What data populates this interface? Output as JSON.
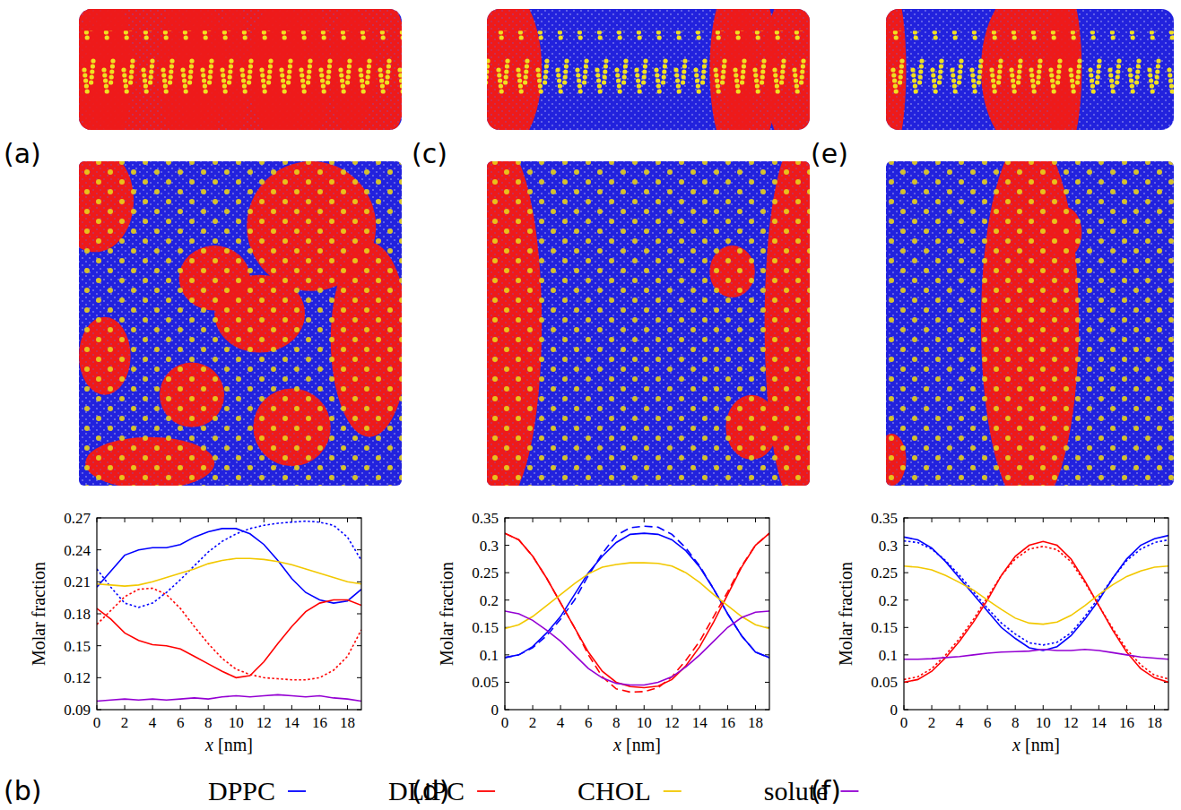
{
  "panel_labels": [
    "(a)",
    "(b)",
    "(c)",
    "(d)",
    "(e)",
    "(f)"
  ],
  "chart_data": [
    {
      "type": "line",
      "xlabel": "x [nm]",
      "ylabel": "Molar fraction",
      "legend": "bottom",
      "x": [
        0,
        1,
        2,
        3,
        4,
        5,
        6,
        7,
        8,
        9,
        10,
        11,
        12,
        13,
        14,
        15,
        16,
        17,
        18,
        19
      ],
      "xlim": [
        0,
        19
      ],
      "xticks": [
        0,
        2,
        4,
        6,
        8,
        10,
        12,
        14,
        16,
        18
      ],
      "ylim": [
        0.09,
        0.27
      ],
      "yticks": [
        0.09,
        0.12,
        0.15,
        0.18,
        0.21,
        0.24,
        0.27
      ],
      "series": [
        {
          "name": "DPPC",
          "color": "#0000ff",
          "line_style": "solid",
          "values": [
            0.205,
            0.22,
            0.235,
            0.24,
            0.242,
            0.242,
            0.245,
            0.252,
            0.257,
            0.26,
            0.26,
            0.255,
            0.245,
            0.23,
            0.213,
            0.2,
            0.193,
            0.19,
            0.192,
            0.203
          ]
        },
        {
          "name": "DPPC",
          "color": "#0000ff",
          "line_style": "dotted",
          "values": [
            0.222,
            0.205,
            0.19,
            0.186,
            0.19,
            0.2,
            0.212,
            0.225,
            0.238,
            0.248,
            0.255,
            0.26,
            0.263,
            0.265,
            0.266,
            0.267,
            0.266,
            0.263,
            0.252,
            0.23
          ]
        },
        {
          "name": "DLiPC",
          "color": "#ff0000",
          "line_style": "solid",
          "values": [
            0.185,
            0.175,
            0.162,
            0.155,
            0.151,
            0.15,
            0.147,
            0.14,
            0.133,
            0.126,
            0.12,
            0.122,
            0.135,
            0.152,
            0.168,
            0.182,
            0.19,
            0.193,
            0.193,
            0.188
          ]
        },
        {
          "name": "DLiPC",
          "color": "#ff0000",
          "line_style": "dotted",
          "values": [
            0.17,
            0.183,
            0.196,
            0.203,
            0.204,
            0.198,
            0.185,
            0.168,
            0.152,
            0.138,
            0.128,
            0.123,
            0.12,
            0.119,
            0.118,
            0.118,
            0.12,
            0.127,
            0.14,
            0.165
          ]
        },
        {
          "name": "CHOL",
          "color": "#f2c800",
          "line_style": "solid",
          "values": [
            0.208,
            0.207,
            0.206,
            0.207,
            0.21,
            0.214,
            0.218,
            0.222,
            0.227,
            0.23,
            0.232,
            0.232,
            0.231,
            0.229,
            0.226,
            0.222,
            0.218,
            0.214,
            0.21,
            0.208
          ]
        },
        {
          "name": "solute",
          "color": "#9400d3",
          "line_style": "solid",
          "values": [
            0.098,
            0.099,
            0.1,
            0.099,
            0.1,
            0.099,
            0.1,
            0.101,
            0.1,
            0.102,
            0.103,
            0.102,
            0.103,
            0.104,
            0.103,
            0.102,
            0.103,
            0.101,
            0.1,
            0.098
          ]
        }
      ]
    },
    {
      "type": "line",
      "xlabel": "x [nm]",
      "ylabel": "Molar fraction",
      "legend": "bottom",
      "x": [
        0,
        1,
        2,
        3,
        4,
        5,
        6,
        7,
        8,
        9,
        10,
        11,
        12,
        13,
        14,
        15,
        16,
        17,
        18,
        19
      ],
      "xlim": [
        0,
        19
      ],
      "xticks": [
        0,
        2,
        4,
        6,
        8,
        10,
        12,
        14,
        16,
        18
      ],
      "ylim": [
        0,
        0.35
      ],
      "yticks": [
        0,
        0.05,
        0.1,
        0.15,
        0.2,
        0.25,
        0.3,
        0.35
      ],
      "series": [
        {
          "name": "DPPC",
          "color": "#0000ff",
          "line_style": "solid",
          "values": [
            0.095,
            0.1,
            0.115,
            0.14,
            0.17,
            0.21,
            0.25,
            0.28,
            0.305,
            0.32,
            0.322,
            0.32,
            0.31,
            0.29,
            0.26,
            0.22,
            0.175,
            0.135,
            0.105,
            0.095
          ]
        },
        {
          "name": "DPPC",
          "color": "#0000ff",
          "line_style": "dashed",
          "values": [
            0.095,
            0.1,
            0.113,
            0.135,
            0.165,
            0.2,
            0.245,
            0.285,
            0.318,
            0.332,
            0.335,
            0.333,
            0.32,
            0.295,
            0.262,
            0.22,
            0.175,
            0.135,
            0.105,
            0.095
          ]
        },
        {
          "name": "DLiPC",
          "color": "#ff0000",
          "line_style": "solid",
          "values": [
            0.322,
            0.31,
            0.28,
            0.24,
            0.195,
            0.15,
            0.105,
            0.07,
            0.05,
            0.042,
            0.04,
            0.043,
            0.055,
            0.08,
            0.115,
            0.16,
            0.21,
            0.26,
            0.3,
            0.322
          ]
        },
        {
          "name": "DLiPC",
          "color": "#ff0000",
          "line_style": "dashed",
          "values": [
            0.322,
            0.31,
            0.28,
            0.24,
            0.195,
            0.15,
            0.1,
            0.06,
            0.038,
            0.032,
            0.033,
            0.04,
            0.06,
            0.09,
            0.125,
            0.17,
            0.215,
            0.262,
            0.3,
            0.322
          ]
        },
        {
          "name": "CHOL",
          "color": "#f2c800",
          "line_style": "solid",
          "values": [
            0.148,
            0.155,
            0.17,
            0.19,
            0.21,
            0.23,
            0.248,
            0.26,
            0.265,
            0.268,
            0.268,
            0.267,
            0.262,
            0.25,
            0.232,
            0.21,
            0.19,
            0.17,
            0.155,
            0.148
          ]
        },
        {
          "name": "solute",
          "color": "#9400d3",
          "line_style": "solid",
          "values": [
            0.18,
            0.175,
            0.163,
            0.145,
            0.125,
            0.1,
            0.075,
            0.058,
            0.048,
            0.045,
            0.045,
            0.05,
            0.06,
            0.078,
            0.1,
            0.125,
            0.15,
            0.168,
            0.178,
            0.18
          ]
        }
      ]
    },
    {
      "type": "line",
      "xlabel": "x [nm]",
      "ylabel": "Molar fraction",
      "legend": "bottom",
      "x": [
        0,
        1,
        2,
        3,
        4,
        5,
        6,
        7,
        8,
        9,
        10,
        11,
        12,
        13,
        14,
        15,
        16,
        17,
        18,
        19
      ],
      "xlim": [
        0,
        19
      ],
      "xticks": [
        0,
        2,
        4,
        6,
        8,
        10,
        12,
        14,
        16,
        18
      ],
      "ylim": [
        0,
        0.35
      ],
      "yticks": [
        0,
        0.05,
        0.1,
        0.15,
        0.2,
        0.25,
        0.3,
        0.35
      ],
      "series": [
        {
          "name": "DPPC",
          "color": "#0000ff",
          "line_style": "solid",
          "values": [
            0.315,
            0.31,
            0.295,
            0.27,
            0.24,
            0.21,
            0.18,
            0.15,
            0.13,
            0.113,
            0.108,
            0.115,
            0.135,
            0.165,
            0.2,
            0.24,
            0.275,
            0.3,
            0.312,
            0.318
          ]
        },
        {
          "name": "DPPC",
          "color": "#0000ff",
          "line_style": "dotted",
          "values": [
            0.308,
            0.305,
            0.293,
            0.272,
            0.245,
            0.215,
            0.185,
            0.158,
            0.138,
            0.122,
            0.118,
            0.123,
            0.14,
            0.17,
            0.205,
            0.24,
            0.272,
            0.293,
            0.305,
            0.31
          ]
        },
        {
          "name": "DLiPC",
          "color": "#ff0000",
          "line_style": "solid",
          "values": [
            0.05,
            0.055,
            0.07,
            0.095,
            0.125,
            0.16,
            0.2,
            0.245,
            0.28,
            0.3,
            0.307,
            0.3,
            0.275,
            0.235,
            0.19,
            0.145,
            0.105,
            0.075,
            0.058,
            0.05
          ]
        },
        {
          "name": "DLiPC",
          "color": "#ff0000",
          "line_style": "dotted",
          "values": [
            0.055,
            0.06,
            0.075,
            0.1,
            0.13,
            0.165,
            0.205,
            0.245,
            0.275,
            0.293,
            0.298,
            0.292,
            0.27,
            0.232,
            0.19,
            0.148,
            0.11,
            0.082,
            0.063,
            0.056
          ]
        },
        {
          "name": "CHOL",
          "color": "#f2c800",
          "line_style": "solid",
          "values": [
            0.262,
            0.26,
            0.255,
            0.245,
            0.232,
            0.218,
            0.2,
            0.183,
            0.167,
            0.158,
            0.156,
            0.16,
            0.172,
            0.19,
            0.21,
            0.228,
            0.243,
            0.253,
            0.26,
            0.262
          ]
        },
        {
          "name": "solute",
          "color": "#9400d3",
          "line_style": "solid",
          "values": [
            0.092,
            0.092,
            0.093,
            0.095,
            0.097,
            0.1,
            0.103,
            0.105,
            0.106,
            0.107,
            0.11,
            0.108,
            0.108,
            0.11,
            0.108,
            0.104,
            0.1,
            0.096,
            0.094,
            0.092
          ]
        }
      ]
    }
  ]
}
